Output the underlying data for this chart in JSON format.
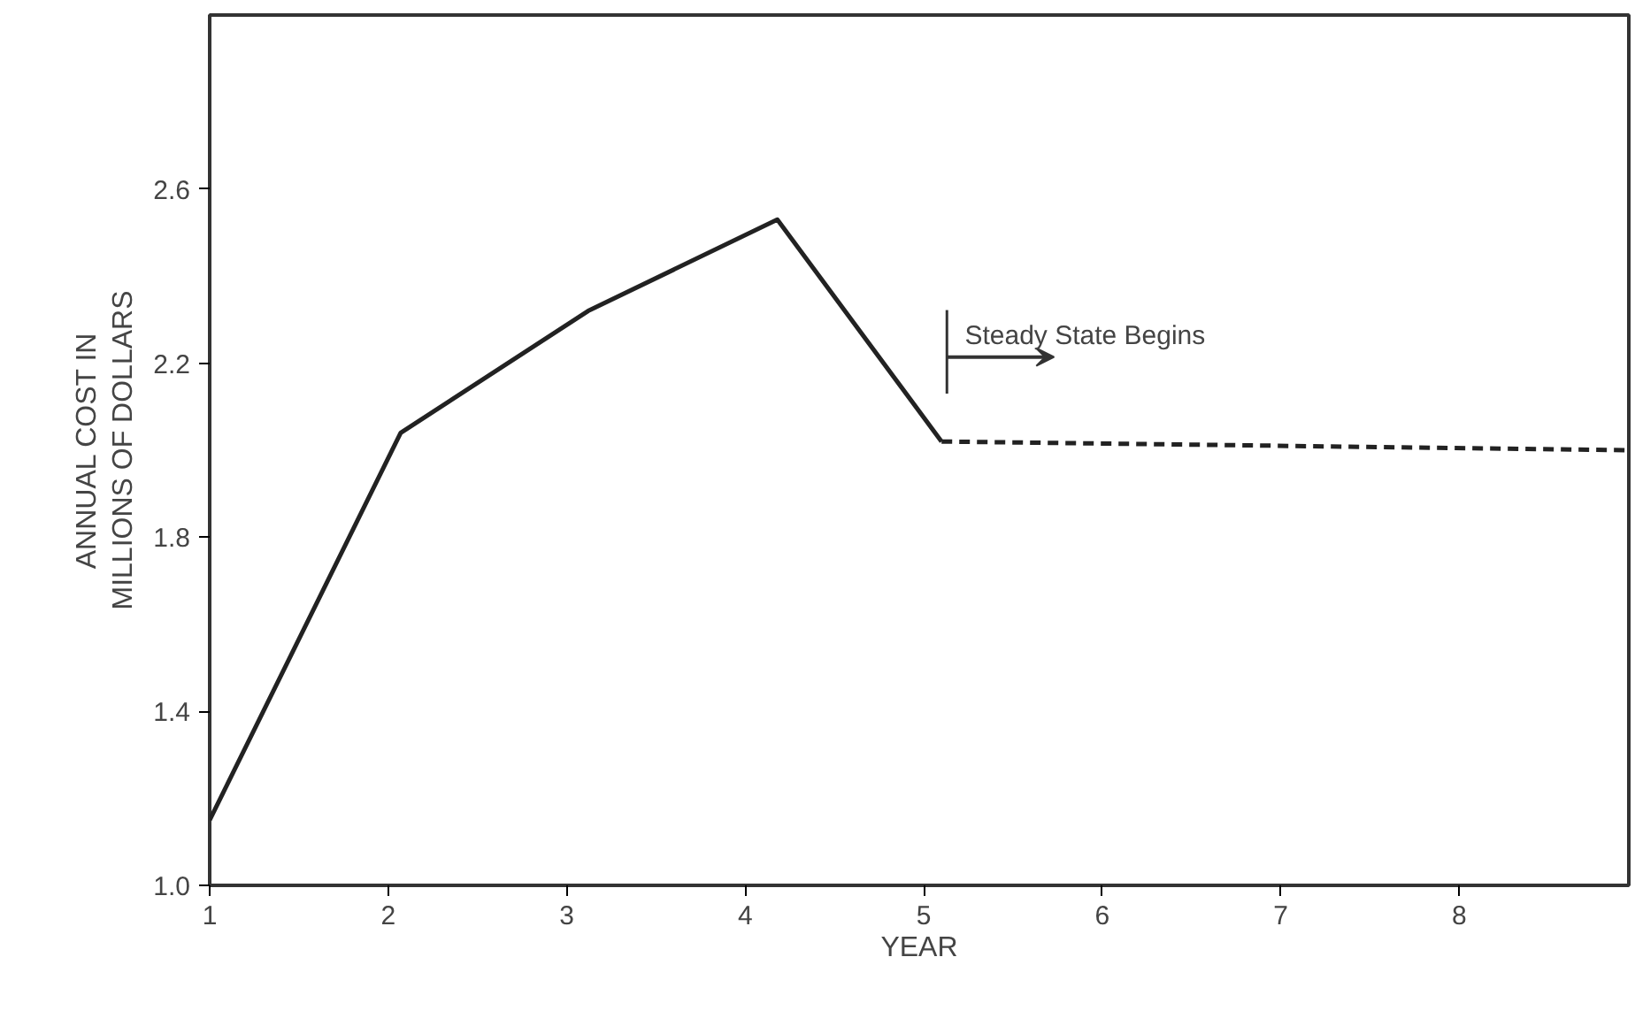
{
  "chart_data": {
    "type": "line",
    "xlabel": "YEAR",
    "ylabel": "ANNUAL COST IN\nMILLIONS OF DOLLARS",
    "xlim": [
      1,
      8.95
    ],
    "ylim": [
      1.0,
      3.0
    ],
    "xticks": [
      1,
      2,
      3,
      4,
      5,
      6,
      7,
      8
    ],
    "yticks": [
      {
        "value": 1.0,
        "label": "1.0"
      },
      1.4,
      1.8,
      2.2,
      2.6
    ],
    "grid": false,
    "marker": "none",
    "series": [
      {
        "color": "#222222",
        "x": [
          1,
          2.07,
          3.12,
          4.18,
          5.1
        ],
        "values": [
          1.15,
          2.04,
          2.32,
          2.53,
          2.02
        ],
        "line_style": "solid"
      },
      {
        "color": "#222222",
        "x": [
          5.1,
          8.95
        ],
        "values": [
          2.02,
          2.0
        ],
        "line_style": "dashed"
      }
    ],
    "annotations": [
      "Steady State Begins"
    ]
  }
}
